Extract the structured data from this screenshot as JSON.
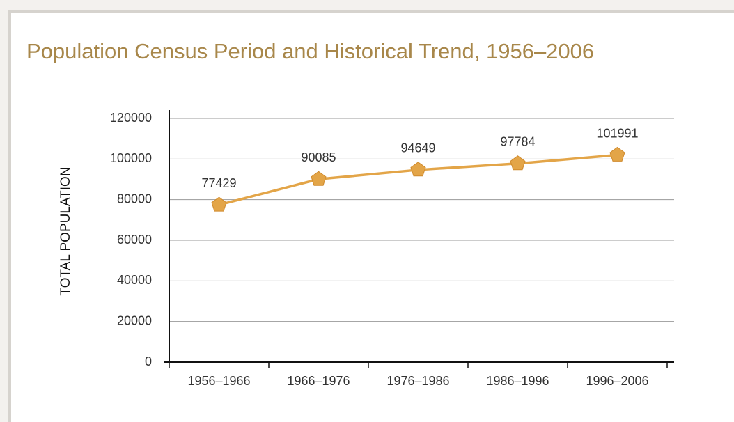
{
  "chart_data": {
    "type": "line",
    "title": "Population Census Period and Historical Trend, 1956–2006",
    "y_label": "TOTAL POPULATION",
    "categories": [
      "1956–1966",
      "1966–1976",
      "1976–1986",
      "1986–1996",
      "1996–2006"
    ],
    "series": [
      {
        "name": "Total population",
        "color": "#e3a548",
        "values": [
          77429,
          90085,
          94649,
          97784,
          101991
        ]
      }
    ],
    "ylim": [
      0,
      120000
    ],
    "yticks": [
      0,
      20000,
      40000,
      60000,
      80000,
      100000,
      120000
    ],
    "grid": true
  }
}
